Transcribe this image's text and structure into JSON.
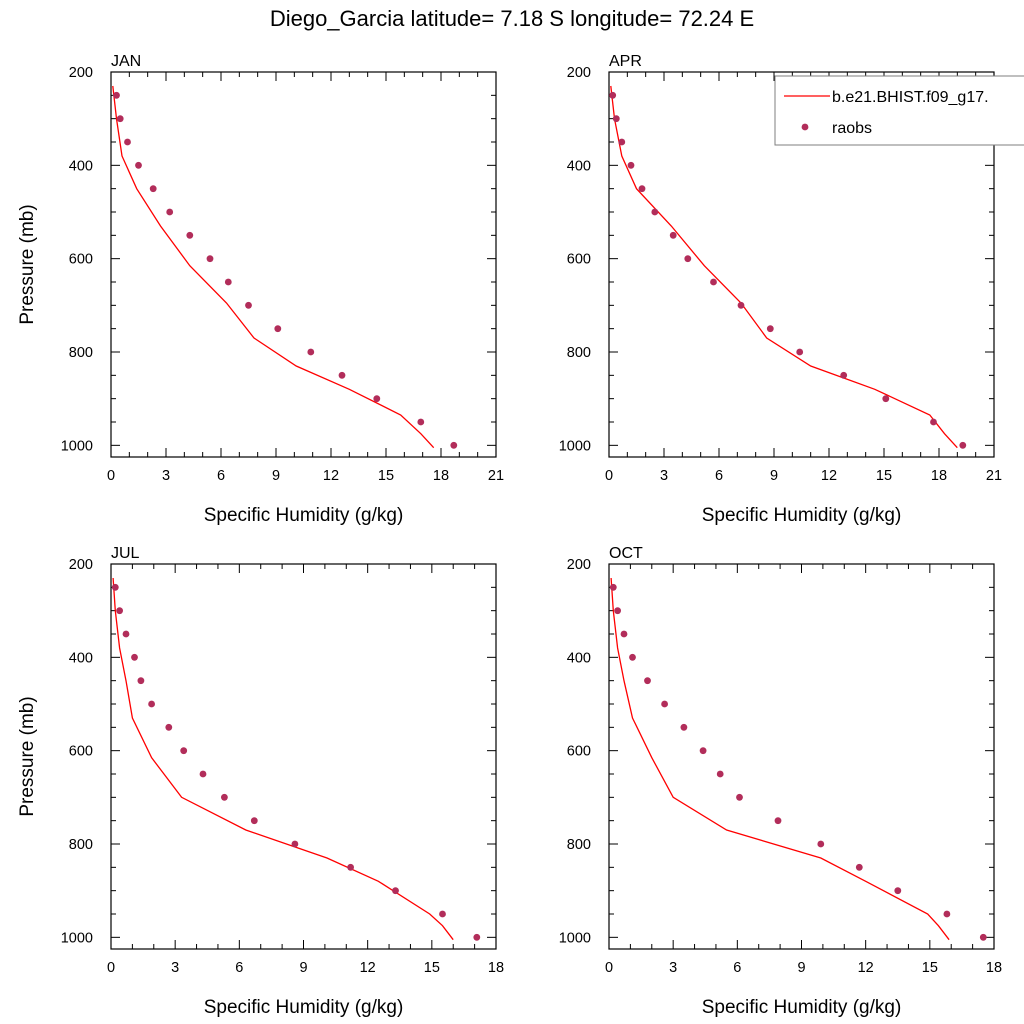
{
  "figure_title": "Diego_Garcia  latitude= 7.18 S longitude= 72.24 E",
  "legend": {
    "model_label": "b.e21.BHIST.f09_g17.",
    "obs_label": "raobs"
  },
  "colors": {
    "model_line": "#ff0000",
    "obs_marker": "#b22d5a",
    "axes": "#000000",
    "background": "#ffffff"
  },
  "chart_data": [
    {
      "type": "line",
      "title": "JAN",
      "xlabel": "Specific Humidity (g/kg)",
      "ylabel": "Pressure (mb)",
      "xlim": [
        0,
        21
      ],
      "ylim": [
        200,
        1025
      ],
      "y_inverted": true,
      "xticks": [
        0,
        3,
        6,
        9,
        12,
        15,
        18,
        21
      ],
      "yticks": [
        200,
        400,
        600,
        800,
        1000
      ],
      "series": [
        {
          "name": "b.e21.BHIST.f09_g17.",
          "kind": "line",
          "x": [
            0.1,
            0.3,
            0.6,
            1.4,
            2.7,
            4.3,
            6.3,
            7.8,
            10.1,
            13.0,
            15.8,
            16.9,
            17.6
          ],
          "y": [
            230,
            300,
            380,
            450,
            530,
            615,
            695,
            770,
            830,
            880,
            935,
            975,
            1005
          ]
        },
        {
          "name": "raobs",
          "kind": "scatter",
          "x": [
            0.3,
            0.5,
            0.9,
            1.5,
            2.3,
            3.2,
            4.3,
            5.4,
            6.4,
            7.5,
            9.1,
            10.9,
            12.6,
            14.5,
            16.9,
            18.7
          ],
          "y": [
            250,
            300,
            350,
            400,
            450,
            500,
            550,
            600,
            650,
            700,
            750,
            800,
            850,
            900,
            950,
            1000
          ]
        }
      ]
    },
    {
      "type": "line",
      "title": "APR",
      "xlabel": "Specific Humidity (g/kg)",
      "ylabel": "",
      "xlim": [
        0,
        21
      ],
      "ylim": [
        200,
        1025
      ],
      "y_inverted": true,
      "xticks": [
        0,
        3,
        6,
        9,
        12,
        15,
        18,
        21
      ],
      "yticks": [
        200,
        400,
        600,
        800,
        1000
      ],
      "series": [
        {
          "name": "b.e21.BHIST.f09_g17.",
          "kind": "line",
          "x": [
            0.1,
            0.3,
            0.7,
            1.5,
            3.4,
            5.2,
            7.2,
            8.6,
            11.0,
            14.5,
            17.5,
            18.3,
            19.0
          ],
          "y": [
            230,
            300,
            380,
            450,
            530,
            615,
            695,
            770,
            830,
            880,
            935,
            975,
            1005
          ]
        },
        {
          "name": "raobs",
          "kind": "scatter",
          "x": [
            0.2,
            0.4,
            0.7,
            1.2,
            1.8,
            2.5,
            3.5,
            4.3,
            5.7,
            7.2,
            8.8,
            10.4,
            12.8,
            15.1,
            17.7,
            19.3
          ],
          "y": [
            250,
            300,
            350,
            400,
            450,
            500,
            550,
            600,
            650,
            700,
            750,
            800,
            850,
            900,
            950,
            1000
          ]
        }
      ]
    },
    {
      "type": "line",
      "title": "JUL",
      "xlabel": "Specific Humidity (g/kg)",
      "ylabel": "Pressure (mb)",
      "xlim": [
        0,
        18
      ],
      "ylim": [
        200,
        1025
      ],
      "y_inverted": true,
      "xticks": [
        0,
        3,
        6,
        9,
        12,
        15,
        18
      ],
      "yticks": [
        200,
        400,
        600,
        800,
        1000
      ],
      "series": [
        {
          "name": "b.e21.BHIST.f09_g17.",
          "kind": "line",
          "x": [
            0.1,
            0.2,
            0.4,
            0.7,
            1.0,
            1.9,
            3.3,
            6.3,
            10.1,
            12.5,
            14.9,
            15.5,
            16.0
          ],
          "y": [
            230,
            300,
            380,
            450,
            530,
            615,
            700,
            770,
            830,
            880,
            950,
            975,
            1005
          ]
        },
        {
          "name": "raobs",
          "kind": "scatter",
          "x": [
            0.2,
            0.4,
            0.7,
            1.1,
            1.4,
            1.9,
            2.7,
            3.4,
            4.3,
            5.3,
            6.7,
            8.6,
            11.2,
            13.3,
            15.5,
            17.1
          ],
          "y": [
            250,
            300,
            350,
            400,
            450,
            500,
            550,
            600,
            650,
            700,
            750,
            800,
            850,
            900,
            950,
            1000
          ]
        }
      ]
    },
    {
      "type": "line",
      "title": "OCT",
      "xlabel": "Specific Humidity (g/kg)",
      "ylabel": "",
      "xlim": [
        0,
        18
      ],
      "ylim": [
        200,
        1025
      ],
      "y_inverted": true,
      "xticks": [
        0,
        3,
        6,
        9,
        12,
        15,
        18
      ],
      "yticks": [
        200,
        400,
        600,
        800,
        1000
      ],
      "series": [
        {
          "name": "b.e21.BHIST.f09_g17.",
          "kind": "line",
          "x": [
            0.1,
            0.2,
            0.4,
            0.7,
            1.1,
            2.0,
            3.0,
            5.5,
            9.9,
            12.0,
            14.9,
            15.4,
            15.9
          ],
          "y": [
            230,
            300,
            380,
            450,
            530,
            615,
            700,
            770,
            830,
            880,
            950,
            975,
            1005
          ]
        },
        {
          "name": "raobs",
          "kind": "scatter",
          "x": [
            0.2,
            0.4,
            0.7,
            1.1,
            1.8,
            2.6,
            3.5,
            4.4,
            5.2,
            6.1,
            7.9,
            9.9,
            11.7,
            13.5,
            15.8,
            17.5
          ],
          "y": [
            250,
            300,
            350,
            400,
            450,
            500,
            550,
            600,
            650,
            700,
            750,
            800,
            850,
            900,
            950,
            1000
          ]
        }
      ]
    }
  ]
}
